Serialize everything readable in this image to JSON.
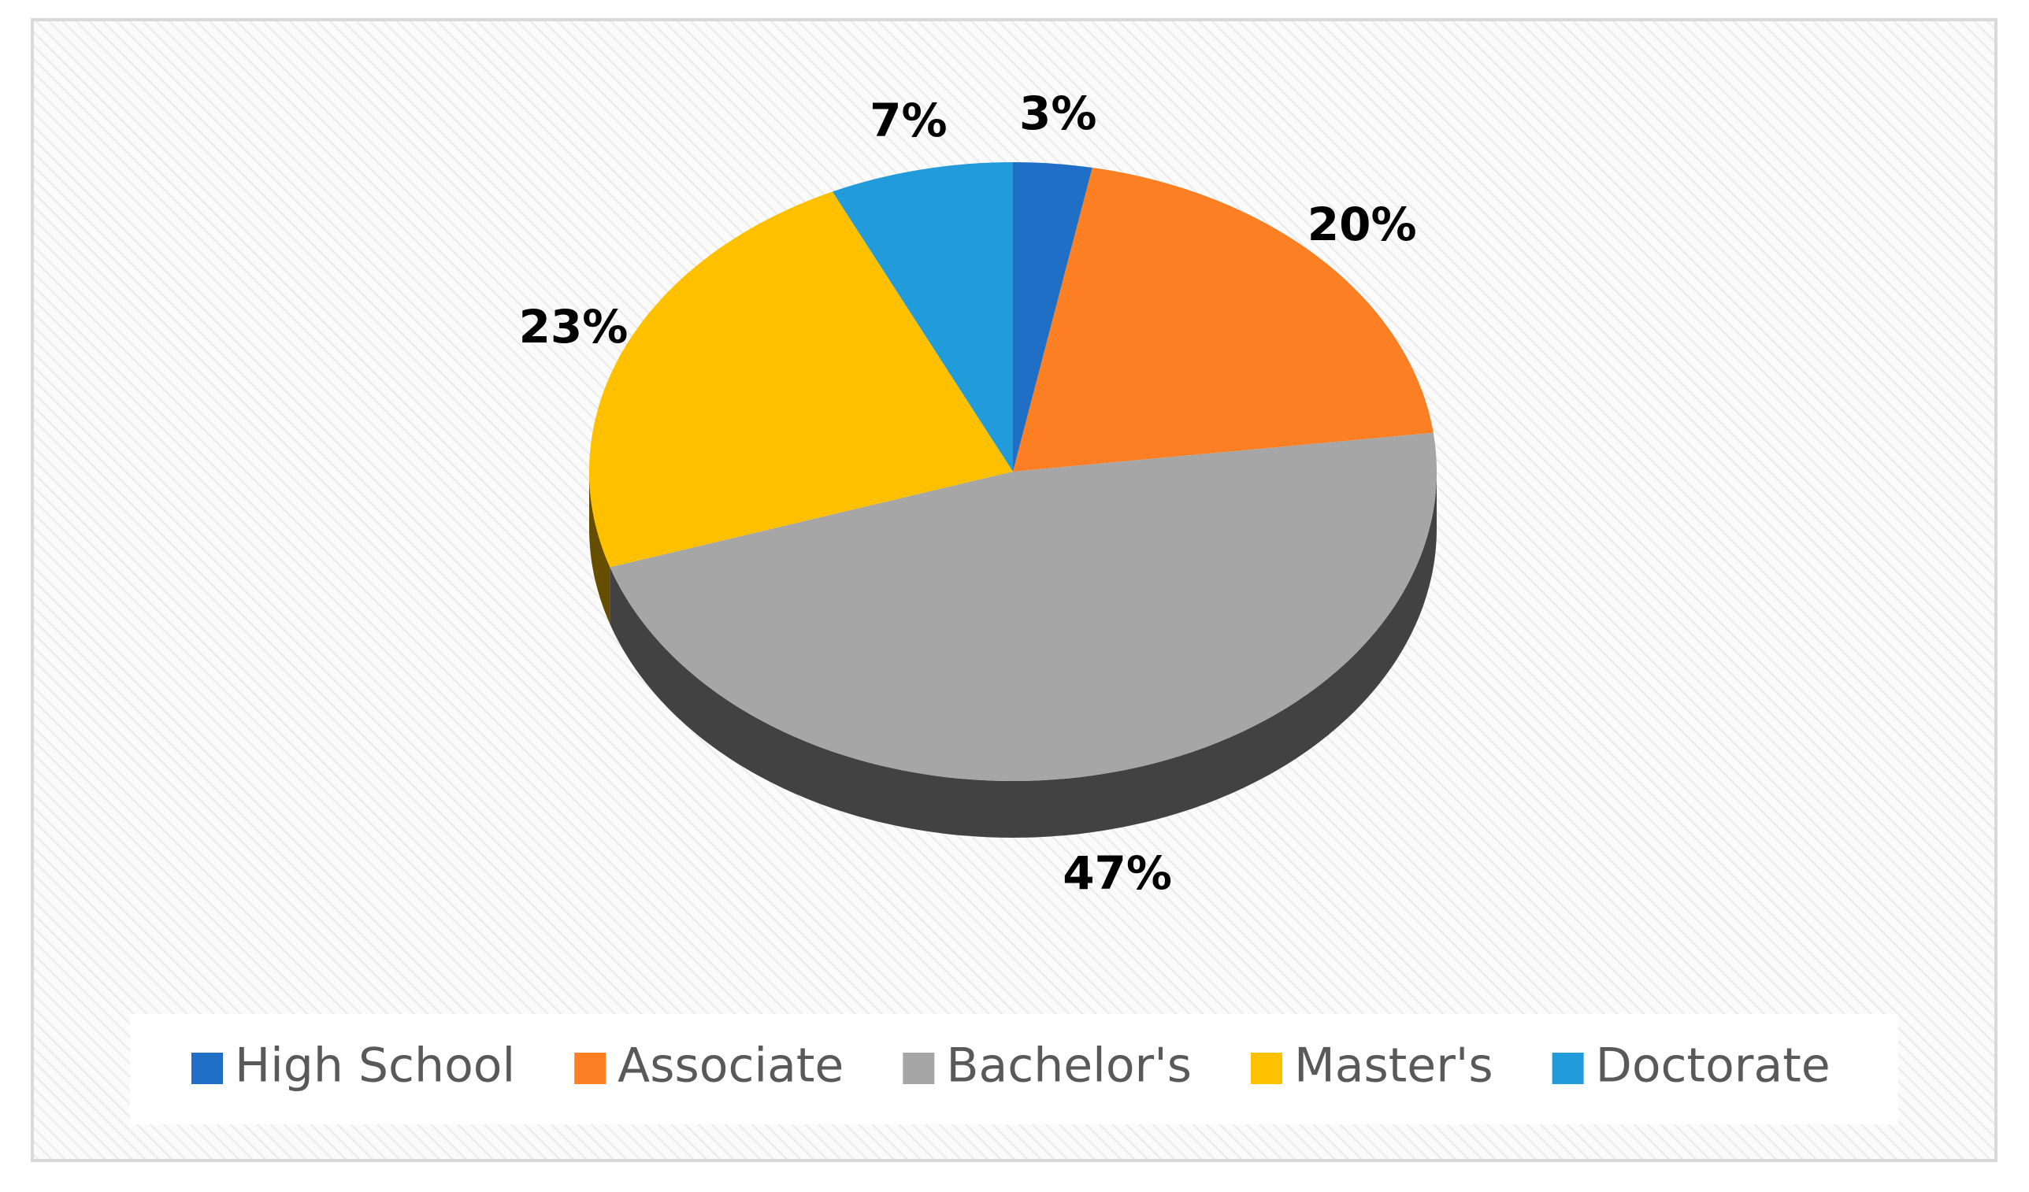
{
  "chart_data": {
    "type": "pie",
    "categories": [
      "High School",
      "Associate",
      "Bachelor's",
      "Master's",
      "Doctorate"
    ],
    "values": [
      3,
      20,
      47,
      23,
      7
    ],
    "value_labels": [
      "3%",
      "20%",
      "47%",
      "23%",
      "7%"
    ],
    "colors": [
      "#1f6fc6",
      "#fd7f24",
      "#a6a6a6",
      "#ffc000",
      "#229bda"
    ],
    "legend": "bottom"
  }
}
